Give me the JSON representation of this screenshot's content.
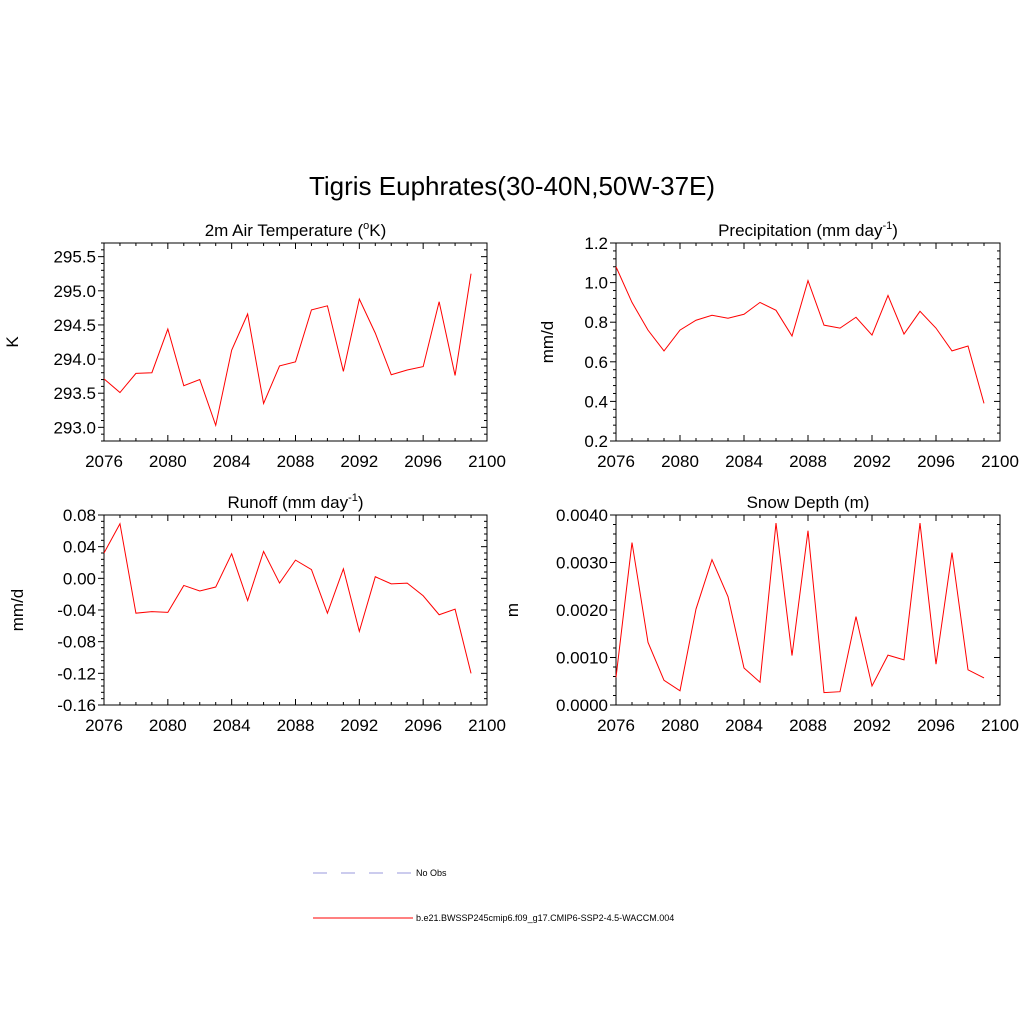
{
  "figure_title": "Tigris Euphrates(30-40N,50W-37E)",
  "colors": {
    "series": "#ff0000",
    "no_obs": "#9999dd",
    "axis": "#000000"
  },
  "legend": {
    "entries": [
      {
        "label": "No Obs",
        "style": "dashed",
        "color": "#9999dd"
      },
      {
        "label": "b.e21.BWSSP245cmip6.f09_g17.CMIP6-SSP2-4.5-WACCM.004",
        "style": "solid",
        "color": "#ff0000"
      }
    ]
  },
  "chart_data": [
    {
      "type": "line",
      "title": "2m Air Temperature (",
      "title_super": "o",
      "title_after": "K)",
      "ylabel": "K",
      "xlabel": "",
      "xlim": [
        2076,
        2100
      ],
      "ylim": [
        292.8,
        295.7
      ],
      "xticks": [
        "2076",
        "2080",
        "2084",
        "2088",
        "2092",
        "2096",
        "2100"
      ],
      "yticks": [
        "293.0",
        "293.5",
        "294.0",
        "294.5",
        "295.0",
        "295.5"
      ],
      "grid": false,
      "series": [
        {
          "x": [
            2076,
            2077,
            2078,
            2079,
            2080,
            2081,
            2082,
            2083,
            2084,
            2085,
            2086,
            2087,
            2088,
            2089,
            2090,
            2091,
            2092,
            2093,
            2094,
            2095,
            2096,
            2097,
            2098,
            2099
          ],
          "values": [
            293.71,
            293.51,
            293.79,
            293.8,
            294.44,
            293.61,
            293.7,
            293.03,
            294.13,
            294.66,
            293.35,
            293.9,
            293.96,
            294.72,
            294.78,
            293.82,
            294.88,
            294.38,
            293.77,
            293.84,
            293.89,
            294.84,
            293.76,
            295.25
          ]
        }
      ]
    },
    {
      "type": "line",
      "title": "Precipitation (mm day",
      "title_super": "-1",
      "title_after": ")",
      "ylabel": "mm/d",
      "xlabel": "",
      "xlim": [
        2076,
        2100
      ],
      "ylim": [
        0.2,
        1.2
      ],
      "xticks": [
        "2076",
        "2080",
        "2084",
        "2088",
        "2092",
        "2096",
        "2100"
      ],
      "yticks": [
        "0.2",
        "0.4",
        "0.6",
        "0.8",
        "1.0",
        "1.2"
      ],
      "grid": false,
      "series": [
        {
          "x": [
            2076,
            2077,
            2078,
            2079,
            2080,
            2081,
            2082,
            2083,
            2084,
            2085,
            2086,
            2087,
            2088,
            2089,
            2090,
            2091,
            2092,
            2093,
            2094,
            2095,
            2096,
            2097,
            2098,
            2099
          ],
          "values": [
            1.08,
            0.9,
            0.76,
            0.655,
            0.76,
            0.81,
            0.835,
            0.82,
            0.84,
            0.9,
            0.86,
            0.73,
            1.01,
            0.785,
            0.77,
            0.825,
            0.735,
            0.935,
            0.74,
            0.855,
            0.77,
            0.655,
            0.68,
            0.39
          ]
        }
      ]
    },
    {
      "type": "line",
      "title": "Runoff (mm day",
      "title_super": "-1",
      "title_after": ")",
      "ylabel": "mm/d",
      "xlabel": "",
      "xlim": [
        2076,
        2100
      ],
      "ylim": [
        -0.16,
        0.08
      ],
      "xticks": [
        "2076",
        "2080",
        "2084",
        "2088",
        "2092",
        "2096",
        "2100"
      ],
      "yticks": [
        "-0.16",
        "-0.12",
        "-0.08",
        "-0.04",
        "0.00",
        "0.04",
        "0.08"
      ],
      "grid": false,
      "series": [
        {
          "x": [
            2076,
            2077,
            2078,
            2079,
            2080,
            2081,
            2082,
            2083,
            2084,
            2085,
            2086,
            2087,
            2088,
            2089,
            2090,
            2091,
            2092,
            2093,
            2094,
            2095,
            2096,
            2097,
            2098,
            2099
          ],
          "values": [
            0.032,
            0.069,
            -0.044,
            -0.042,
            -0.043,
            -0.009,
            -0.016,
            -0.011,
            0.031,
            -0.028,
            0.034,
            -0.006,
            0.023,
            0.011,
            -0.044,
            0.012,
            -0.067,
            0.002,
            -0.007,
            -0.006,
            -0.022,
            -0.046,
            -0.039,
            -0.12
          ]
        }
      ]
    },
    {
      "type": "line",
      "title": "Snow Depth (m)",
      "title_super": "",
      "title_after": "",
      "ylabel": "m",
      "xlabel": "",
      "xlim": [
        2076,
        2100
      ],
      "ylim": [
        0.0,
        0.004
      ],
      "xticks": [
        "2076",
        "2080",
        "2084",
        "2088",
        "2092",
        "2096",
        "2100"
      ],
      "yticks": [
        "0.0000",
        "0.0010",
        "0.0020",
        "0.0030",
        "0.0040"
      ],
      "grid": false,
      "series": [
        {
          "x": [
            2076,
            2077,
            2078,
            2079,
            2080,
            2081,
            2082,
            2083,
            2084,
            2085,
            2086,
            2087,
            2088,
            2089,
            2090,
            2091,
            2092,
            2093,
            2094,
            2095,
            2096,
            2097,
            2098,
            2099
          ],
          "values": [
            0.00058,
            0.00342,
            0.00132,
            0.00052,
            0.0003,
            0.00202,
            0.00306,
            0.00228,
            0.00078,
            0.00048,
            0.00383,
            0.00104,
            0.00367,
            0.00026,
            0.00028,
            0.00186,
            0.0004,
            0.00105,
            0.00095,
            0.00383,
            0.00086,
            0.00321,
            0.00074,
            0.00057
          ]
        }
      ]
    }
  ]
}
